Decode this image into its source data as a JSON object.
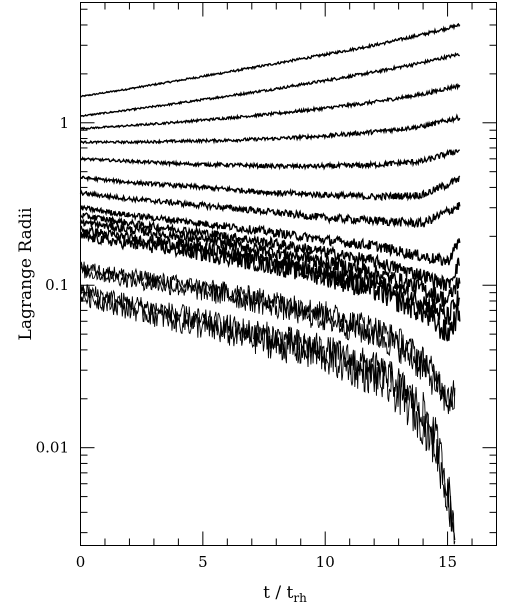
{
  "chart_data": {
    "type": "line",
    "title": "",
    "xlabel": "t / t",
    "xlabel_subscript": "rh",
    "ylabel": "Lagrange Radii",
    "x_scale": "linear",
    "y_scale": "log",
    "xlim": [
      0,
      17
    ],
    "ylim": [
      0.0025,
      5.5
    ],
    "x_ticks": [
      0,
      5,
      10,
      15
    ],
    "x_tick_labels": [
      "0",
      "5",
      "10",
      "15"
    ],
    "y_ticks": [
      0.01,
      0.1,
      1
    ],
    "y_tick_labels": [
      "0.01",
      "0.1",
      "1"
    ],
    "grid": false,
    "series": [
      {
        "x": [
          0,
          2,
          4,
          6,
          8,
          10,
          12,
          14,
          15.5
        ],
        "y": [
          1.45,
          1.62,
          1.82,
          2.05,
          2.32,
          2.63,
          3.0,
          3.5,
          4.0
        ]
      },
      {
        "x": [
          0,
          2,
          4,
          6,
          8,
          10,
          12,
          14,
          15.5
        ],
        "y": [
          1.1,
          1.2,
          1.32,
          1.46,
          1.62,
          1.82,
          2.05,
          2.35,
          2.65
        ]
      },
      {
        "x": [
          0,
          2,
          4,
          6,
          8,
          10,
          12,
          14,
          15.5
        ],
        "y": [
          0.92,
          0.96,
          1.01,
          1.07,
          1.14,
          1.23,
          1.34,
          1.5,
          1.7
        ]
      },
      {
        "x": [
          0,
          2,
          4,
          6,
          8,
          10,
          12,
          14,
          15.5
        ],
        "y": [
          0.76,
          0.76,
          0.77,
          0.78,
          0.8,
          0.83,
          0.88,
          0.95,
          1.08
        ]
      },
      {
        "x": [
          0,
          2,
          4,
          6,
          8,
          10,
          12,
          14,
          15.5
        ],
        "y": [
          0.6,
          0.58,
          0.56,
          0.55,
          0.54,
          0.54,
          0.55,
          0.58,
          0.68
        ]
      },
      {
        "x": [
          0,
          2,
          4,
          6,
          8,
          10,
          12,
          14,
          15.5
        ],
        "y": [
          0.46,
          0.43,
          0.41,
          0.39,
          0.37,
          0.36,
          0.35,
          0.36,
          0.45
        ]
      },
      {
        "x": [
          0,
          2,
          4,
          6,
          8,
          10,
          12,
          14,
          15.5
        ],
        "y": [
          0.37,
          0.34,
          0.32,
          0.3,
          0.28,
          0.26,
          0.25,
          0.24,
          0.31
        ]
      },
      {
        "x": [
          0,
          2,
          4,
          6,
          8,
          10,
          12,
          14,
          15.0,
          15.5
        ],
        "y": [
          0.3,
          0.27,
          0.25,
          0.23,
          0.21,
          0.19,
          0.175,
          0.15,
          0.14,
          0.19
        ]
      },
      {
        "x": [
          0,
          2,
          4,
          6,
          8,
          10,
          12,
          14,
          15.0,
          15.5
        ],
        "y": [
          0.27,
          0.24,
          0.22,
          0.2,
          0.18,
          0.16,
          0.14,
          0.115,
          0.1,
          0.14
        ]
      },
      {
        "x": [
          0,
          2,
          4,
          6,
          8,
          10,
          12,
          14,
          15.0,
          15.5
        ],
        "y": [
          0.245,
          0.22,
          0.2,
          0.18,
          0.16,
          0.14,
          0.12,
          0.095,
          0.08,
          0.11
        ]
      },
      {
        "x": [
          0,
          2,
          4,
          6,
          8,
          10,
          12,
          14,
          15.0,
          15.5
        ],
        "y": [
          0.22,
          0.195,
          0.178,
          0.16,
          0.142,
          0.124,
          0.105,
          0.08,
          0.063,
          0.085
        ]
      },
      {
        "x": [
          0,
          2,
          4,
          6,
          8,
          10,
          12,
          14,
          15.0,
          15.5
        ],
        "y": [
          0.2,
          0.18,
          0.164,
          0.148,
          0.13,
          0.113,
          0.093,
          0.068,
          0.05,
          0.07
        ]
      },
      {
        "x": [
          0,
          2,
          4,
          6,
          8,
          10,
          12,
          13,
          14,
          14.5,
          15.0,
          15.3
        ],
        "y": [
          0.13,
          0.115,
          0.103,
          0.092,
          0.08,
          0.068,
          0.055,
          0.046,
          0.035,
          0.028,
          0.021,
          0.022
        ]
      },
      {
        "x": [
          0,
          2,
          4,
          6,
          8,
          10,
          12,
          13,
          14,
          14.5,
          15.0,
          15.3
        ],
        "y": [
          0.122,
          0.108,
          0.097,
          0.086,
          0.074,
          0.062,
          0.05,
          0.042,
          0.031,
          0.025,
          0.019,
          0.02
        ]
      },
      {
        "x": [
          0,
          2,
          4,
          6,
          8,
          10,
          12,
          13,
          14,
          14.5,
          15.0,
          15.3
        ],
        "y": [
          0.094,
          0.078,
          0.066,
          0.056,
          0.048,
          0.04,
          0.031,
          0.025,
          0.017,
          0.012,
          0.006,
          0.003
        ]
      },
      {
        "x": [
          0,
          2,
          4,
          6,
          8,
          10,
          12,
          13,
          14,
          14.5,
          15.0,
          15.3
        ],
        "y": [
          0.086,
          0.071,
          0.06,
          0.051,
          0.043,
          0.036,
          0.027,
          0.021,
          0.014,
          0.01,
          0.005,
          0.003
        ]
      }
    ]
  }
}
